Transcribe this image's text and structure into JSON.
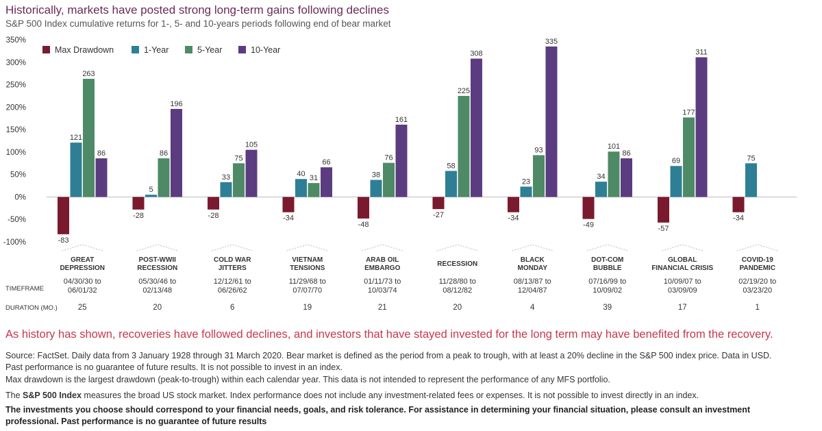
{
  "title": "Historically, markets have posted strong long-term gains following declines",
  "subtitle": "S&P 500 Index cumulative returns for 1-, 5- and 10-years periods following end of bear market",
  "chart_data": {
    "type": "bar",
    "ylim": [
      -100,
      350
    ],
    "yticks": [
      -100,
      -50,
      0,
      50,
      100,
      150,
      200,
      250,
      300,
      350
    ],
    "ytick_labels": [
      "-100%",
      "-50%",
      "0%",
      "50%",
      "100%",
      "150%",
      "200%",
      "250%",
      "300%",
      "350%"
    ],
    "legend_position": "top-left",
    "grid": false,
    "categories": [
      [
        "GREAT",
        "DEPRESSION"
      ],
      [
        "POST-WWII",
        "RECESSION"
      ],
      [
        "COLD WAR",
        "JITTERS"
      ],
      [
        "VIETNAM",
        "TENSIONS"
      ],
      [
        "ARAB OIL",
        "EMBARGO"
      ],
      [
        "RECESSION"
      ],
      [
        "BLACK",
        "MONDAY"
      ],
      [
        "DOT-COM",
        "BUBBLE"
      ],
      [
        "GLOBAL",
        "FINANCIAL CRISIS"
      ],
      [
        "COVID-19",
        "PANDEMIC"
      ]
    ],
    "series": [
      {
        "name": "Max Drawdown",
        "color": "#7a1a2e",
        "values": [
          -83,
          -28,
          -28,
          -34,
          -48,
          -27,
          -34,
          -49,
          -57,
          -34
        ]
      },
      {
        "name": "1-Year",
        "color": "#2e7f96",
        "values": [
          121,
          5,
          33,
          40,
          38,
          58,
          23,
          34,
          69,
          75
        ]
      },
      {
        "name": "5-Year",
        "color": "#4e8a66",
        "values": [
          263,
          86,
          75,
          31,
          76,
          225,
          93,
          101,
          177,
          null
        ]
      },
      {
        "name": "10-Year",
        "color": "#5b3c80",
        "values": [
          86,
          196,
          105,
          66,
          161,
          308,
          335,
          86,
          311,
          null
        ]
      }
    ],
    "timeframe_label": "TIMEFRAME",
    "timeframes": [
      [
        "04/30/30 to",
        "06/01/32"
      ],
      [
        "05/30/46 to",
        "02/13/48"
      ],
      [
        "12/12/61 to",
        "06/26/62"
      ],
      [
        "11/29/68 to",
        "07/07/70"
      ],
      [
        "01/11/73 to",
        "10/03/74"
      ],
      [
        "11/28/80 to",
        "08/12/82"
      ],
      [
        "08/13/87 to",
        "12/04/87"
      ],
      [
        "07/16/99 to",
        "10/09/02"
      ],
      [
        "10/09/07 to",
        "03/09/09"
      ],
      [
        "02/19/20 to",
        "03/23/20"
      ]
    ],
    "duration_label": "DURATION (MO.)",
    "durations": [
      "25",
      "20",
      "6",
      "19",
      "21",
      "20",
      "4",
      "39",
      "17",
      "1"
    ]
  },
  "callout": "As history has shown, recoveries have followed declines, and investors that have stayed invested for the long term may have benefited from the recovery.",
  "notes": {
    "source_line1": "Source: FactSet. Daily data from 3 January 1928 through 31 March 2020. Bear market is defined as the period from a peak to trough, with at least a 20% decline in the S&P 500 index price. Data in USD.",
    "source_line2": "Past performance is no guarantee of future results. It is not possible to invest in an index.",
    "max_drawdown": "Max drawdown is the largest drawdown (peak-to-trough) within each calendar year. This data is not intended to represent the performance of any MFS portfolio.",
    "index_prefix": "The ",
    "index_name": "S&P 500 Index",
    "index_rest": " measures the broad US stock market. Index performance does not include any investment-related fees or expenses. It is not possible to invest directly in an index.",
    "disclaimer_line1": "The investments you choose should correspond to your financial needs, goals, and risk tolerance. For assistance in determining your financial situation, please consult an investment",
    "disclaimer_line2": "professional. Past performance is no guarantee of future results"
  }
}
